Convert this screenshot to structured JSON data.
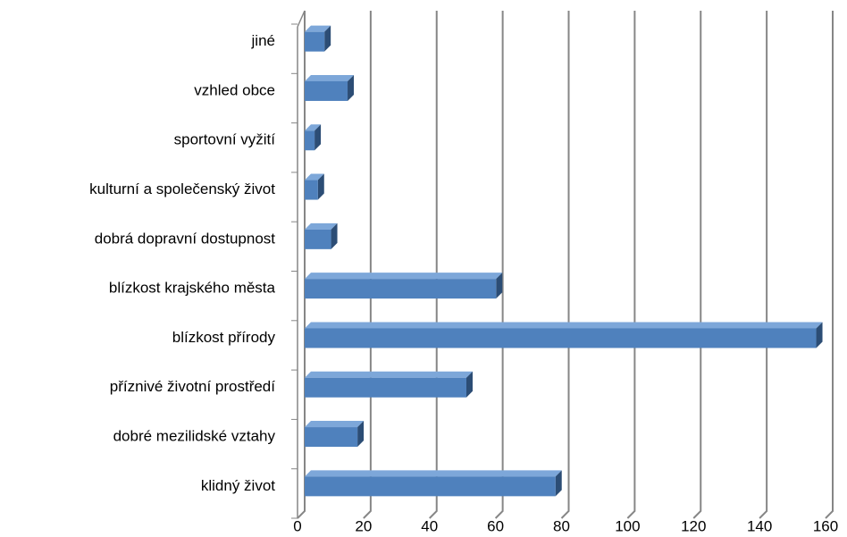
{
  "chart_data": {
    "type": "bar",
    "orientation": "horizontal",
    "categories": [
      "jiné",
      "vzhled obce",
      "sportovní vyžití",
      "kulturní a společenský život",
      "dobrá dopravní dostupnost",
      "blízkost krajského města",
      "blízkost přírody",
      "příznivé životní prostředí",
      "dobré mezilidské vztahy",
      "klidný život"
    ],
    "values": [
      6,
      13,
      3,
      4,
      8,
      58,
      155,
      49,
      16,
      76
    ],
    "color": "#4f81bd",
    "xlim": [
      0,
      160
    ],
    "xticks": [
      0,
      20,
      40,
      60,
      80,
      100,
      120,
      140,
      160
    ],
    "grid": true
  }
}
